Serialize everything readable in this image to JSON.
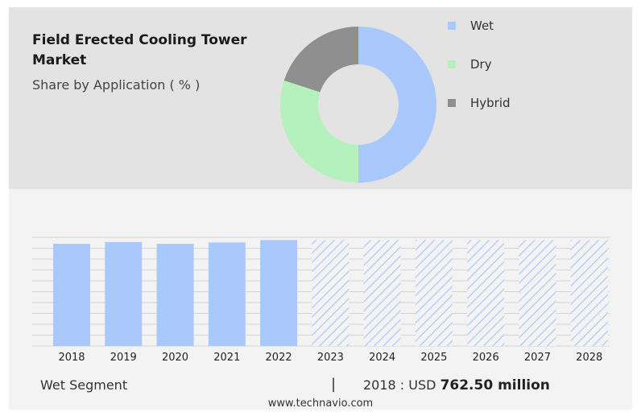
{
  "title": "Field Erected Cooling Tower Market",
  "subtitle": "Share by Application ( % )",
  "colors": {
    "wet": "#a9c8fb",
    "dry": "#b4f1bd",
    "hybrid": "#8f8f8f",
    "forecast_hatch": "#a9c8fb"
  },
  "chart_data": [
    {
      "type": "pie",
      "variant": "donut",
      "title": "",
      "categories": [
        "Wet",
        "Dry",
        "Hybrid"
      ],
      "values": [
        50,
        30,
        20
      ],
      "legend": {
        "placement": "right",
        "entries": [
          "Wet",
          "Dry",
          "Hybrid"
        ]
      }
    },
    {
      "type": "bar",
      "title": "",
      "categories": [
        "2018",
        "2019",
        "2020",
        "2021",
        "2022",
        "2023",
        "2024",
        "2025",
        "2026",
        "2027",
        "2028"
      ],
      "series": [
        {
          "values": [
            762.5,
            775,
            762,
            772,
            790,
            null,
            null,
            null,
            null,
            null,
            null
          ]
        }
      ],
      "forecast_categories": [
        "2023",
        "2024",
        "2025",
        "2026",
        "2027",
        "2028"
      ],
      "ylim": [
        0,
        810
      ],
      "grid": true,
      "xlabel": "",
      "ylabel": ""
    }
  ],
  "footer_info": {
    "segment": "Wet Segment",
    "separator": "|",
    "prefix": "2018 : USD",
    "value": "762.50 million"
  },
  "watermark": "www.technavio.com"
}
